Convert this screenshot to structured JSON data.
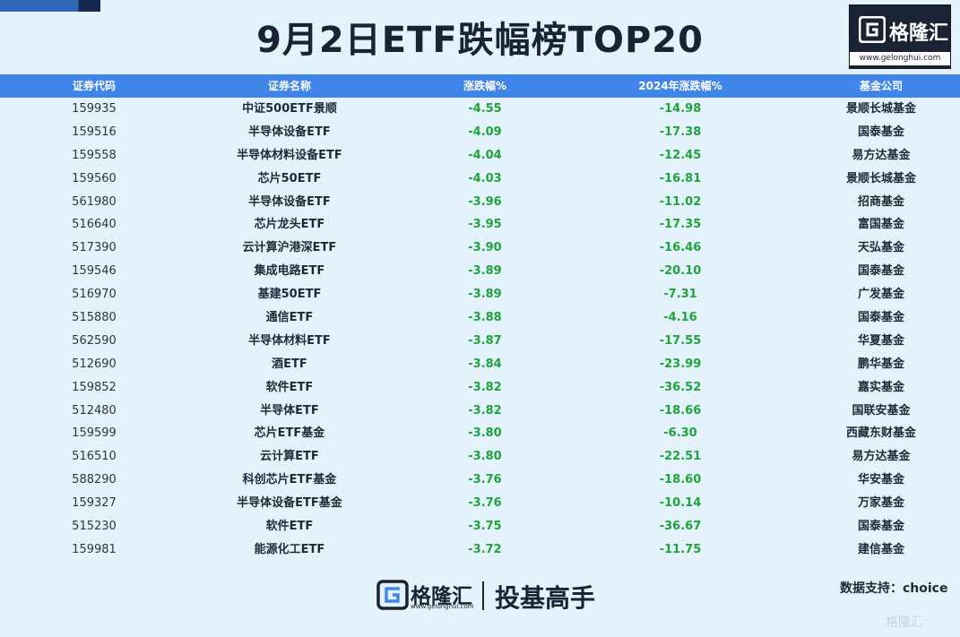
{
  "title": "9月2日ETF跌幅榜TOP20",
  "logo": {
    "brand": "格隆汇",
    "url": "www.gelonghui.com"
  },
  "table": {
    "headers": [
      "证券代码",
      "证券名称",
      "涨跌幅%",
      "2024年涨跌幅%",
      "基金公司"
    ],
    "rows": [
      [
        "159935",
        "中证500ETF景顺",
        "-4.55",
        "-14.98",
        "景顺长城基金"
      ],
      [
        "159516",
        "半导体设备ETF",
        "-4.09",
        "-17.38",
        "国泰基金"
      ],
      [
        "159558",
        "半导体材料设备ETF",
        "-4.04",
        "-12.45",
        "易方达基金"
      ],
      [
        "159560",
        "芯片50ETF",
        "-4.03",
        "-16.81",
        "景顺长城基金"
      ],
      [
        "561980",
        "半导体设备ETF",
        "-3.96",
        "-11.02",
        "招商基金"
      ],
      [
        "516640",
        "芯片龙头ETF",
        "-3.95",
        "-17.35",
        "富国基金"
      ],
      [
        "517390",
        "云计算沪港深ETF",
        "-3.90",
        "-16.46",
        "天弘基金"
      ],
      [
        "159546",
        "集成电路ETF",
        "-3.89",
        "-20.10",
        "国泰基金"
      ],
      [
        "516970",
        "基建50ETF",
        "-3.89",
        "-7.31",
        "广发基金"
      ],
      [
        "515880",
        "通信ETF",
        "-3.88",
        "-4.16",
        "国泰基金"
      ],
      [
        "562590",
        "半导体材料ETF",
        "-3.87",
        "-17.55",
        "华夏基金"
      ],
      [
        "512690",
        "酒ETF",
        "-3.84",
        "-23.99",
        "鹏华基金"
      ],
      [
        "159852",
        "软件ETF",
        "-3.82",
        "-36.52",
        "嘉实基金"
      ],
      [
        "512480",
        "半导体ETF",
        "-3.82",
        "-18.66",
        "国联安基金"
      ],
      [
        "159599",
        "芯片ETF基金",
        "-3.80",
        "-6.30",
        "西藏东财基金"
      ],
      [
        "516510",
        "云计算ETF",
        "-3.80",
        "-22.51",
        "易方达基金"
      ],
      [
        "588290",
        "科创芯片ETF基金",
        "-3.76",
        "-18.60",
        "华安基金"
      ],
      [
        "159327",
        "半导体设备ETF基金",
        "-3.76",
        "-10.14",
        "万家基金"
      ],
      [
        "515230",
        "软件ETF",
        "-3.75",
        "-36.67",
        "国泰基金"
      ],
      [
        "159981",
        "能源化工ETF",
        "-3.72",
        "-11.75",
        "建信基金"
      ]
    ]
  },
  "footer": {
    "brand": "格隆汇",
    "url": "www.gelonghui.com",
    "slogan": "投基高手",
    "source": "数据支持：choice",
    "watermark": "格隆汇"
  },
  "colors": {
    "header_bg": "#3f86e8",
    "negative": "#1fa33a",
    "page_bg": "#e4f2fb"
  }
}
